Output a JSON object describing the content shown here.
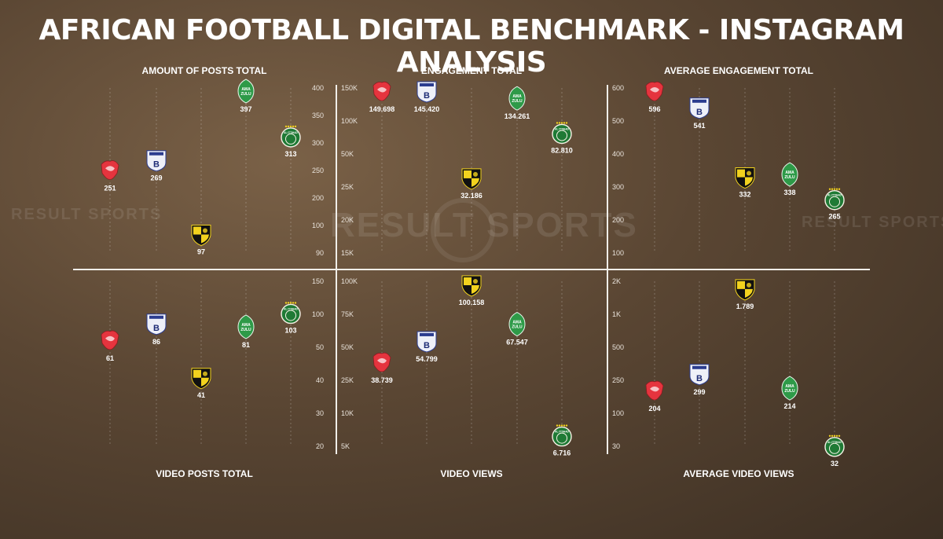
{
  "title": "AFRICAN FOOTBALL DIGITAL BENCHMARK - INSTAGRAM ANALYSIS",
  "watermark": "RESULT SPORTS",
  "colors": {
    "divider": "#f0eee9",
    "club_red": "#e5343e",
    "club_white": "#eef0f8",
    "club_yellow": "#f2d21e",
    "club_green": "#2e9a48",
    "club_darkgreen": "#1f7a35",
    "gridline": "rgba(255,255,255,0.35)"
  },
  "clubs": [
    {
      "id": "red",
      "icon": "red-lion-crest-icon",
      "badge_text": ""
    },
    {
      "id": "white",
      "icon": "white-b-shield-icon",
      "badge_text": "B"
    },
    {
      "id": "yellow",
      "icon": "yellow-black-antelope-shield-icon",
      "badge_text": ""
    },
    {
      "id": "amazulu",
      "icon": "amazulu-green-crest-icon",
      "badge_text": "AMA ZULU"
    },
    {
      "id": "ittihad",
      "icon": "al-ittihad-green-crest-icon",
      "badge_text": "AL ITTIHAD"
    }
  ],
  "chart_data": [
    {
      "type": "scatter",
      "title": "AMOUNT OF POSTS TOTAL",
      "axis_side": "right",
      "yticks": [
        "90",
        "100",
        "200",
        "250",
        "300",
        "350",
        "400"
      ],
      "order": [
        "red",
        "white",
        "yellow",
        "amazulu",
        "ittihad"
      ],
      "values": {
        "red": 251,
        "white": 269,
        "yellow": 97,
        "amazulu": 397,
        "ittihad": 313
      },
      "labels": {
        "red": "251",
        "white": "269",
        "yellow": "97",
        "amazulu": "397",
        "ittihad": "313"
      }
    },
    {
      "type": "scatter",
      "title": "ENGAGEMENT TOTAL",
      "axis_side": "left",
      "yticks": [
        "15K",
        "20K",
        "25K",
        "50K",
        "100K",
        "150K"
      ],
      "order": [
        "red",
        "white",
        "yellow",
        "amazulu",
        "ittihad"
      ],
      "values": {
        "red": 149698,
        "white": 145420,
        "yellow": 32186,
        "amazulu": 134261,
        "ittihad": 82810
      },
      "labels": {
        "red": "149.698",
        "white": "145.420",
        "yellow": "32.186",
        "amazulu": "134.261",
        "ittihad": "82.810"
      }
    },
    {
      "type": "scatter",
      "title": "AVERAGE ENGAGEMENT TOTAL",
      "axis_side": "left",
      "yticks": [
        "100",
        "200",
        "300",
        "400",
        "500",
        "600"
      ],
      "order": [
        "red",
        "white",
        "yellow",
        "amazulu",
        "ittihad"
      ],
      "values": {
        "red": 596,
        "white": 541,
        "yellow": 332,
        "amazulu": 338,
        "ittihad": 265
      },
      "labels": {
        "red": "596",
        "white": "541",
        "yellow": "332",
        "amazulu": "338",
        "ittihad": "265"
      }
    },
    {
      "type": "scatter",
      "title": "VIDEO POSTS TOTAL",
      "axis_side": "right",
      "yticks": [
        "20",
        "30",
        "40",
        "50",
        "100",
        "150"
      ],
      "order": [
        "red",
        "white",
        "yellow",
        "amazulu",
        "ittihad"
      ],
      "values": {
        "red": 61,
        "white": 86,
        "yellow": 41,
        "amazulu": 81,
        "ittihad": 103
      },
      "labels": {
        "red": "61",
        "white": "86",
        "yellow": "41",
        "amazulu": "81",
        "ittihad": "103"
      }
    },
    {
      "type": "scatter",
      "title": "VIDEO VIEWS",
      "axis_side": "left",
      "yticks": [
        "5K",
        "10K",
        "25K",
        "50K",
        "75K",
        "100K"
      ],
      "order": [
        "red",
        "white",
        "yellow",
        "amazulu",
        "ittihad"
      ],
      "values": {
        "red": 38739,
        "white": 54799,
        "yellow": 100158,
        "amazulu": 67547,
        "ittihad": 6716
      },
      "labels": {
        "red": "38.739",
        "white": "54.799",
        "yellow": "100.158",
        "amazulu": "67.547",
        "ittihad": "6.716"
      }
    },
    {
      "type": "scatter",
      "title": "AVERAGE VIDEO VIEWS",
      "axis_side": "left",
      "yticks": [
        "30",
        "100",
        "250",
        "500",
        "1K",
        "2K"
      ],
      "order": [
        "red",
        "white",
        "yellow",
        "amazulu",
        "ittihad"
      ],
      "values": {
        "red": 204,
        "white": 299,
        "yellow": 1789,
        "amazulu": 214,
        "ittihad": 32
      },
      "labels": {
        "red": "204",
        "white": "299",
        "yellow": "1.789",
        "amazulu": "214",
        "ittihad": "32"
      }
    }
  ]
}
